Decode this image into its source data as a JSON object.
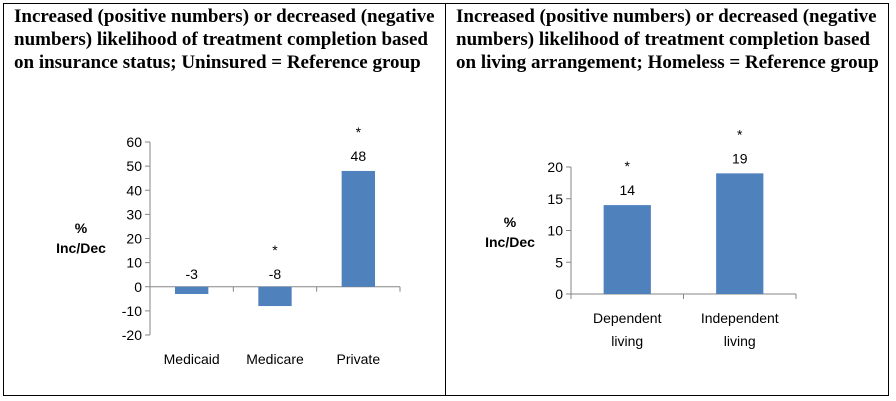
{
  "chart_data": [
    {
      "type": "bar",
      "title": "Increased (positive numbers) or decreased (negative numbers) likelihood of treatment completion based on insurance status; Uninsured = Reference group",
      "ylabel": [
        "%",
        "Inc/Dec"
      ],
      "categories": [
        "Medicaid",
        "Medicare",
        "Private"
      ],
      "values": [
        -3,
        -8,
        48
      ],
      "data_labels": [
        "-3",
        "-8",
        "48"
      ],
      "significance": [
        "",
        "*",
        "*"
      ],
      "ylim": [
        -20,
        60
      ],
      "yticks": [
        -20,
        -10,
        0,
        10,
        20,
        30,
        40,
        50,
        60
      ],
      "grid": false,
      "legend": "none",
      "bar_color": "#4f81bd"
    },
    {
      "type": "bar",
      "title": "Increased (positive numbers) or decreased (negative numbers) likelihood of treatment completion based on living arrangement; Homeless = Reference group",
      "ylabel": [
        "%",
        "Inc/Dec"
      ],
      "categories": [
        [
          "Dependent",
          "living"
        ],
        [
          "Independent",
          "living"
        ]
      ],
      "values": [
        14,
        19
      ],
      "data_labels": [
        "14",
        "19"
      ],
      "significance": [
        "*",
        "*"
      ],
      "ylim": [
        0,
        20
      ],
      "yticks": [
        0,
        5,
        10,
        15,
        20
      ],
      "grid": false,
      "legend": "none",
      "bar_color": "#4f81bd"
    }
  ]
}
